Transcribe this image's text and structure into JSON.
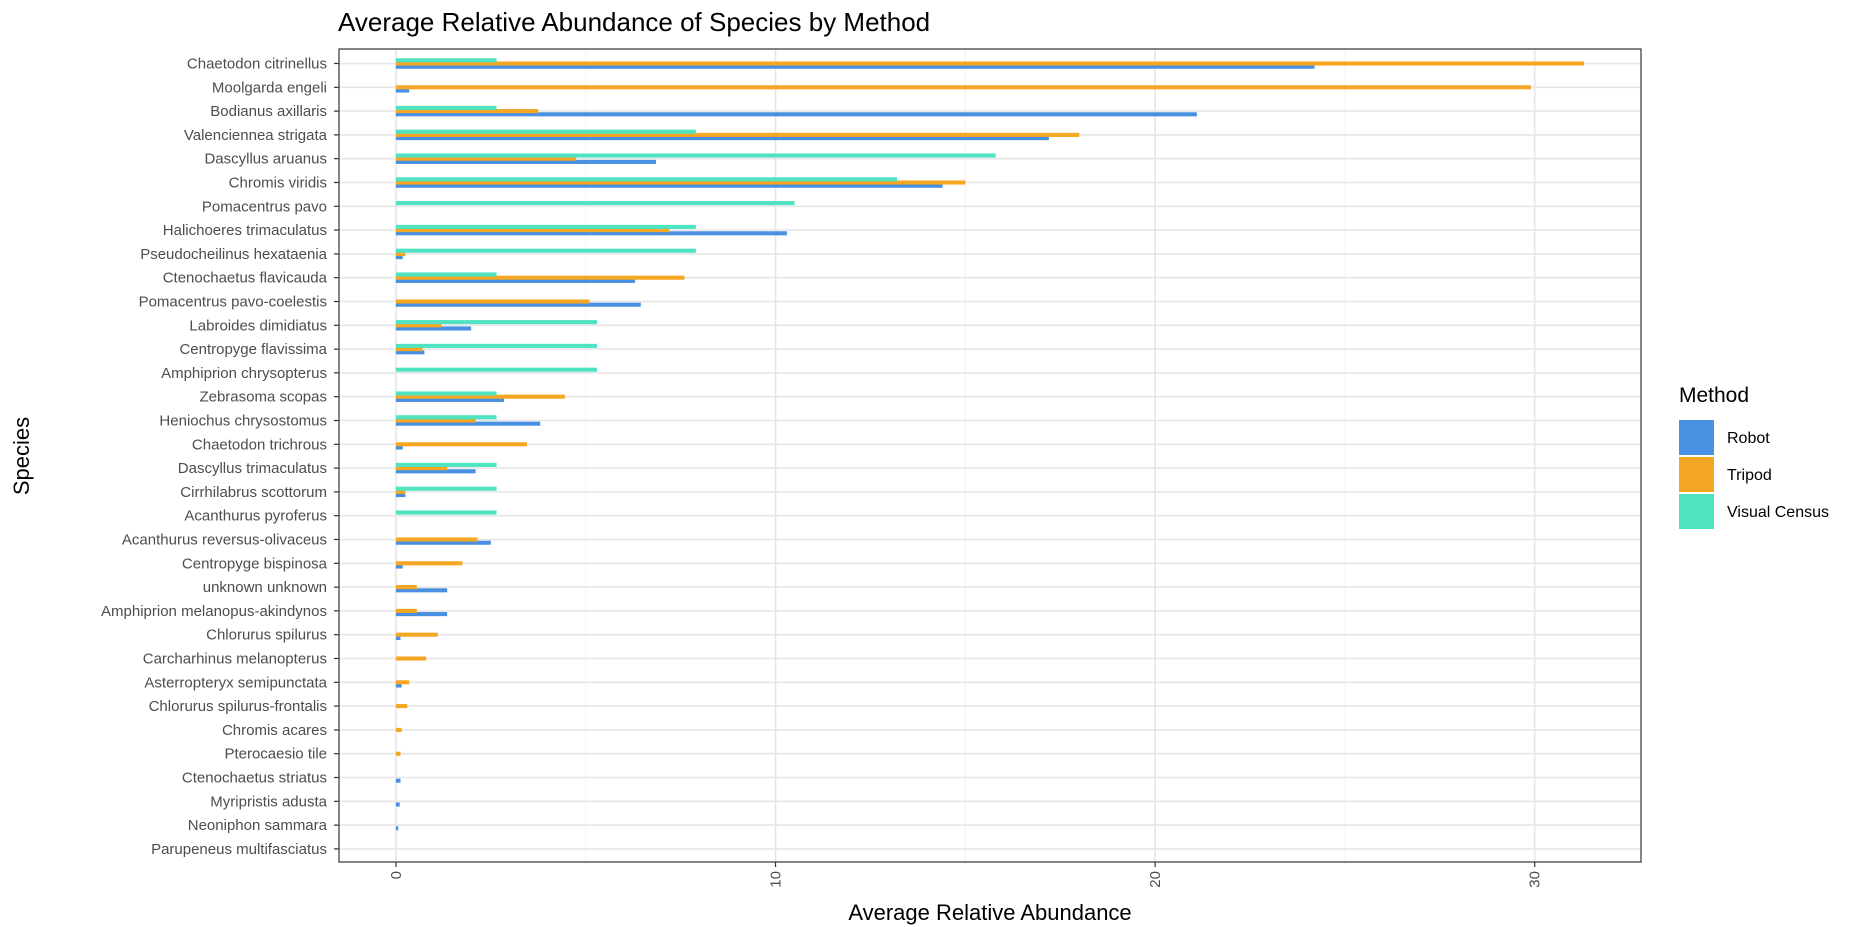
{
  "chart_data": {
    "type": "bar",
    "orientation": "horizontal",
    "title": "Average Relative Abundance of Species by Method",
    "xlabel": "Average Relative Abundance",
    "ylabel": "Species",
    "xlim": [
      -1.5,
      32.8
    ],
    "xticks": [
      0,
      10,
      20,
      30
    ],
    "grid": true,
    "legend": {
      "title": "Method",
      "position": "right"
    },
    "categories": [
      "Chaetodon citrinellus",
      "Moolgarda engeli",
      "Bodianus axillaris",
      "Valenciennea strigata",
      "Dascyllus aruanus",
      "Chromis viridis",
      "Pomacentrus pavo",
      "Halichoeres trimaculatus",
      "Pseudocheilinus hexataenia",
      "Ctenochaetus flavicauda",
      "Pomacentrus pavo-coelestis",
      "Labroides dimidiatus",
      "Centropyge flavissima",
      "Amphiprion chrysopterus",
      "Zebrasoma scopas",
      "Heniochus chrysostomus",
      "Chaetodon trichrous",
      "Dascyllus trimaculatus",
      "Cirrhilabrus scottorum",
      "Acanthurus pyroferus",
      "Acanthurus reversus-olivaceus",
      "Centropyge bispinosa",
      "unknown unknown",
      "Amphiprion melanopus-akindynos",
      "Chlorurus spilurus",
      "Carcharhinus melanopterus",
      "Asterropteryx semipunctata",
      "Chlorurus spilurus-frontalis",
      "Chromis acares",
      "Pterocaesio tile",
      "Ctenochaetus striatus",
      "Myripristis adusta",
      "Neoniphon sammara",
      "Parupeneus multifasciatus"
    ],
    "series": [
      {
        "name": "Robot",
        "color": "#4a90e2",
        "values": [
          24.2,
          0.35,
          21.1,
          17.2,
          6.85,
          14.4,
          0,
          10.3,
          0.18,
          6.3,
          6.45,
          1.98,
          0.75,
          0,
          2.85,
          3.8,
          0.18,
          2.1,
          0.25,
          0,
          2.5,
          0.18,
          1.35,
          1.35,
          0.12,
          0,
          0.15,
          0,
          0,
          0,
          0.12,
          0.1,
          0.06,
          0
        ]
      },
      {
        "name": "Tripod",
        "color": "#f5a623",
        "values": [
          31.3,
          29.9,
          3.75,
          18,
          4.75,
          15,
          0,
          7.2,
          0.25,
          7.6,
          5.1,
          1.2,
          0.7,
          0,
          4.45,
          2.1,
          3.45,
          1.35,
          0.25,
          0,
          2.15,
          1.75,
          0.55,
          0.55,
          1.1,
          0.8,
          0.35,
          0.3,
          0.15,
          0.12,
          0,
          0,
          0,
          0
        ]
      },
      {
        "name": "Visual Census",
        "color": "#50e3c2",
        "values": [
          2.65,
          0,
          2.65,
          7.9,
          15.8,
          13.2,
          10.5,
          7.9,
          7.9,
          2.65,
          0,
          5.3,
          5.3,
          5.3,
          2.65,
          2.65,
          0,
          2.65,
          2.65,
          2.65,
          0,
          0,
          0,
          0,
          0,
          0,
          0,
          0,
          0,
          0,
          0,
          0,
          0,
          0
        ]
      }
    ]
  }
}
